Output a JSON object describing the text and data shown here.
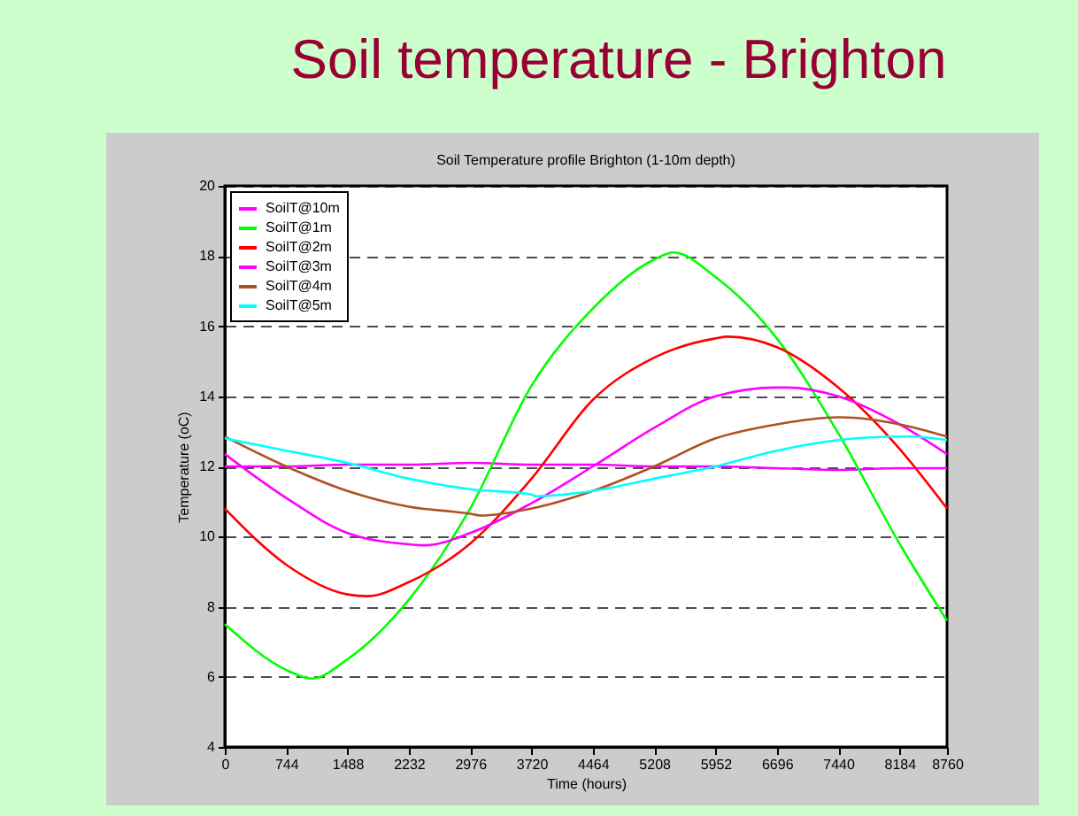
{
  "chart_data": {
    "type": "line",
    "title": "Soil temperature - Brighton",
    "subtitle": "Soil Temperature profile Brighton (1-10m depth)",
    "xlabel": "Time (hours)",
    "ylabel": "Temperature (oC)",
    "xlim": [
      0,
      8760
    ],
    "xticks": [
      0,
      744,
      1488,
      2232,
      2976,
      3720,
      4464,
      5208,
      5952,
      6696,
      7440,
      8184,
      8760
    ],
    "ylim": [
      4,
      20
    ],
    "yticks": [
      4,
      6,
      8,
      10,
      12,
      14,
      16,
      18,
      20
    ],
    "grid": "y",
    "legend": "top left",
    "series": [
      {
        "name": "SoilT@10m",
        "color": "#ff00ff",
        "x": [
          0,
          744,
          1488,
          2232,
          2976,
          3720,
          4464,
          5208,
          5952,
          6696,
          7440,
          8184,
          8760
        ],
        "values": [
          12.0,
          12.0,
          12.05,
          12.05,
          12.1,
          12.05,
          12.05,
          12.0,
          12.0,
          11.95,
          11.9,
          11.95,
          11.95
        ]
      },
      {
        "name": "SoilT@1m",
        "color": "#00ff00",
        "x": [
          0,
          744,
          1055,
          1488,
          2232,
          2976,
          3720,
          4464,
          5208,
          5440,
          5952,
          6696,
          7440,
          8184,
          8760
        ],
        "values": [
          7.5,
          6.2,
          5.95,
          6.5,
          8.2,
          10.8,
          14.3,
          16.5,
          17.9,
          18.1,
          17.4,
          15.65,
          12.95,
          9.8,
          7.6
        ]
      },
      {
        "name": "SoilT@2m",
        "color": "#ff0000",
        "x": [
          0,
          744,
          1488,
          1724,
          2232,
          2976,
          3720,
          4464,
          5208,
          5952,
          6107,
          6696,
          7440,
          8184,
          8760
        ],
        "values": [
          10.8,
          9.2,
          8.35,
          8.3,
          8.7,
          9.8,
          11.65,
          13.9,
          15.1,
          15.65,
          15.7,
          15.4,
          14.25,
          12.5,
          10.8
        ]
      },
      {
        "name": "SoilT@3m",
        "color": "#ff00ff",
        "x": [
          0,
          744,
          1488,
          2232,
          2430,
          2976,
          3720,
          4464,
          5208,
          5952,
          6696,
          6814,
          7440,
          8184,
          8760
        ],
        "values": [
          12.35,
          11.1,
          10.1,
          9.78,
          9.75,
          10.1,
          10.95,
          12.0,
          13.1,
          14.0,
          14.25,
          14.25,
          14.0,
          13.2,
          12.35
        ]
      },
      {
        "name": "SoilT@4m",
        "color": "#b05020",
        "x": [
          0,
          744,
          1488,
          2232,
          2976,
          3100,
          3720,
          4464,
          5208,
          5952,
          6696,
          7440,
          7480,
          8184,
          8760
        ],
        "values": [
          12.85,
          12.0,
          11.3,
          10.85,
          10.65,
          10.6,
          10.8,
          11.3,
          12.0,
          12.8,
          13.2,
          13.4,
          13.4,
          13.2,
          12.85
        ]
      },
      {
        "name": "SoilT@5m",
        "color": "#00ffff",
        "x": [
          0,
          744,
          1488,
          2232,
          2976,
          3720,
          3770,
          4464,
          5208,
          5952,
          6696,
          7440,
          8184,
          8300,
          8760
        ],
        "values": [
          12.8,
          12.45,
          12.1,
          11.65,
          11.35,
          11.2,
          11.15,
          11.3,
          11.65,
          12.0,
          12.45,
          12.75,
          12.85,
          12.85,
          12.75
        ]
      }
    ]
  }
}
